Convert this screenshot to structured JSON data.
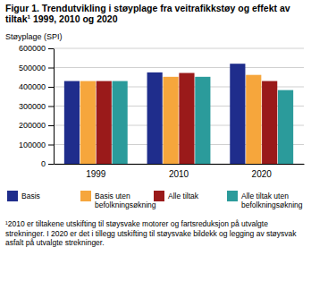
{
  "chart_data": {
    "type": "bar",
    "title": "Figur 1. Trendutvikling i støyplage fra veitrafikkstøy og effekt av tiltak¹ 1999, 2010 og 2020",
    "y_label": "Støyplage (SPI)",
    "categories": [
      "1999",
      "2010",
      "2020"
    ],
    "series": [
      {
        "name": "Basis",
        "color": "#1f2d8c",
        "values": [
          430000,
          475000,
          520000
        ]
      },
      {
        "name": "Basis uten befolkningsøkning",
        "color": "#f6a63c",
        "values": [
          430000,
          452000,
          462000
        ]
      },
      {
        "name": "Alle tiltak",
        "color": "#9a1a1a",
        "values": [
          430000,
          472000,
          430000
        ]
      },
      {
        "name": "Alle tiltak uten befolkningsøkning",
        "color": "#2b9b9b",
        "values": [
          430000,
          452000,
          383000
        ]
      }
    ],
    "ylim": [
      0,
      600000
    ],
    "yticks": [
      0,
      100000,
      200000,
      300000,
      400000,
      500000,
      600000
    ],
    "grid": true,
    "legend": "bottom",
    "footnote": "¹2010 er tiltakene utskifting til støysvake motorer og fartsreduksjon på utvalgte strekninger. I 2020 er det i tillegg utskifting til støysvake bildekk og legging av støysvak asfalt på utvalgte strekninger."
  }
}
